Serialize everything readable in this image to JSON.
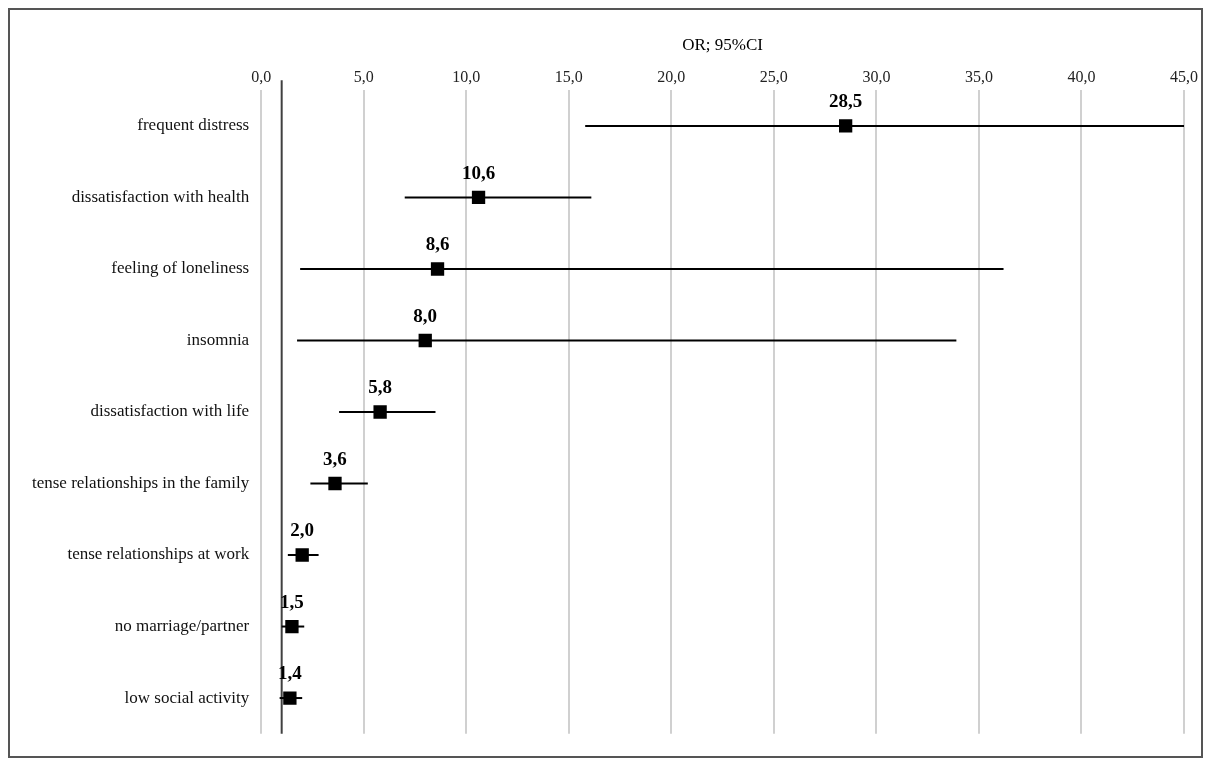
{
  "chart_data": {
    "type": "scatter",
    "orientation": "horizontal",
    "xlabel": "OR; 95%CI",
    "categories": [
      "frequent distress",
      "dissatisfaction with health",
      "feeling of loneliness",
      "insomnia",
      "dissatisfaction with life",
      "tense relationships in the family",
      "tense relationships at work",
      "no marriage/partner",
      "low social activity"
    ],
    "values": [
      28.5,
      10.6,
      8.6,
      8.0,
      5.8,
      3.6,
      2.0,
      1.5,
      1.4
    ],
    "value_labels": [
      "28,5",
      "10,6",
      "8,6",
      "8,0",
      "5,8",
      "3,6",
      "2,0",
      "1,5",
      "1,4"
    ],
    "errors": [
      [
        15.8,
        45
      ],
      [
        7.0,
        16.1
      ],
      [
        1.9,
        36.2
      ],
      [
        1.75,
        33.9
      ],
      [
        3.8,
        8.5
      ],
      [
        2.4,
        5.2
      ],
      [
        1.3,
        2.8
      ],
      [
        1.0,
        2.1
      ],
      [
        0.9,
        2.0
      ]
    ],
    "color": "#000000",
    "marker": "square",
    "grid": "x",
    "xlim": [
      0,
      45
    ],
    "xticks": [
      {
        "value": 0,
        "label": "0,0"
      },
      {
        "value": 5,
        "label": "5,0"
      },
      {
        "value": 10,
        "label": "10,0"
      },
      {
        "value": 15,
        "label": "15,0"
      },
      {
        "value": 20,
        "label": "20,0"
      },
      {
        "value": 25,
        "label": "25,0"
      },
      {
        "value": 30,
        "label": "30,0"
      },
      {
        "value": 35,
        "label": "35,0"
      },
      {
        "value": 40,
        "label": "40,0"
      },
      {
        "value": 45,
        "label": "45,0"
      }
    ],
    "ref_lines": [
      {
        "axis": "x",
        "value": 1,
        "color": "#404040"
      }
    ]
  }
}
